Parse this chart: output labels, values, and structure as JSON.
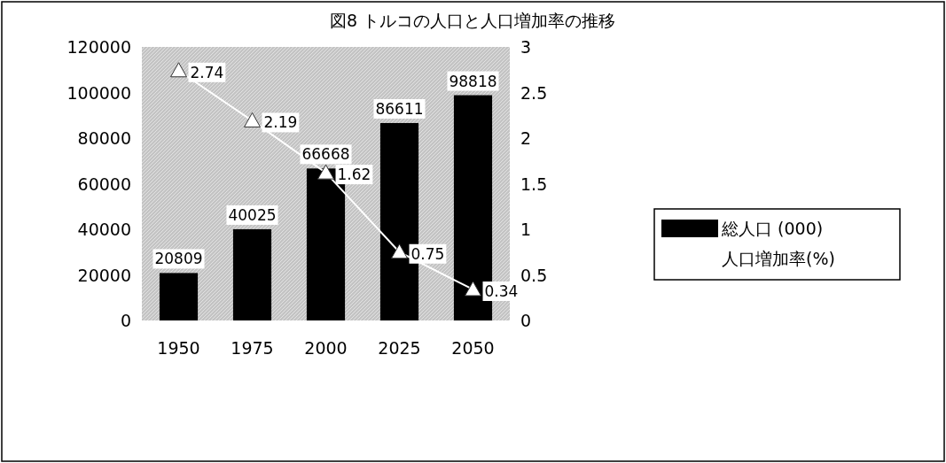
{
  "chart_data": {
    "type": "bar",
    "title": "図8 トルコの人口と人口増加率の推移",
    "categories": [
      "1950",
      "1975",
      "2000",
      "2025",
      "2050"
    ],
    "series": [
      {
        "name": "総人口 (000)",
        "color": "#000000",
        "values": [
          20809,
          40025,
          66668,
          86611,
          98818
        ]
      },
      {
        "name": "人口増加率(%)",
        "type": "line",
        "axis": "y2",
        "color": "#ffffff",
        "values": [
          2.74,
          2.19,
          1.62,
          0.75,
          0.34
        ]
      }
    ],
    "ylim": [
      0,
      120000
    ],
    "yticks": [
      0,
      20000,
      40000,
      60000,
      80000,
      100000,
      120000
    ],
    "y2lim": [
      0,
      3
    ],
    "y2ticks": [
      0,
      0.5,
      1,
      1.5,
      2,
      2.5,
      3
    ],
    "marker": "triangle",
    "data_labels": true,
    "legend": "right",
    "grid": false
  }
}
